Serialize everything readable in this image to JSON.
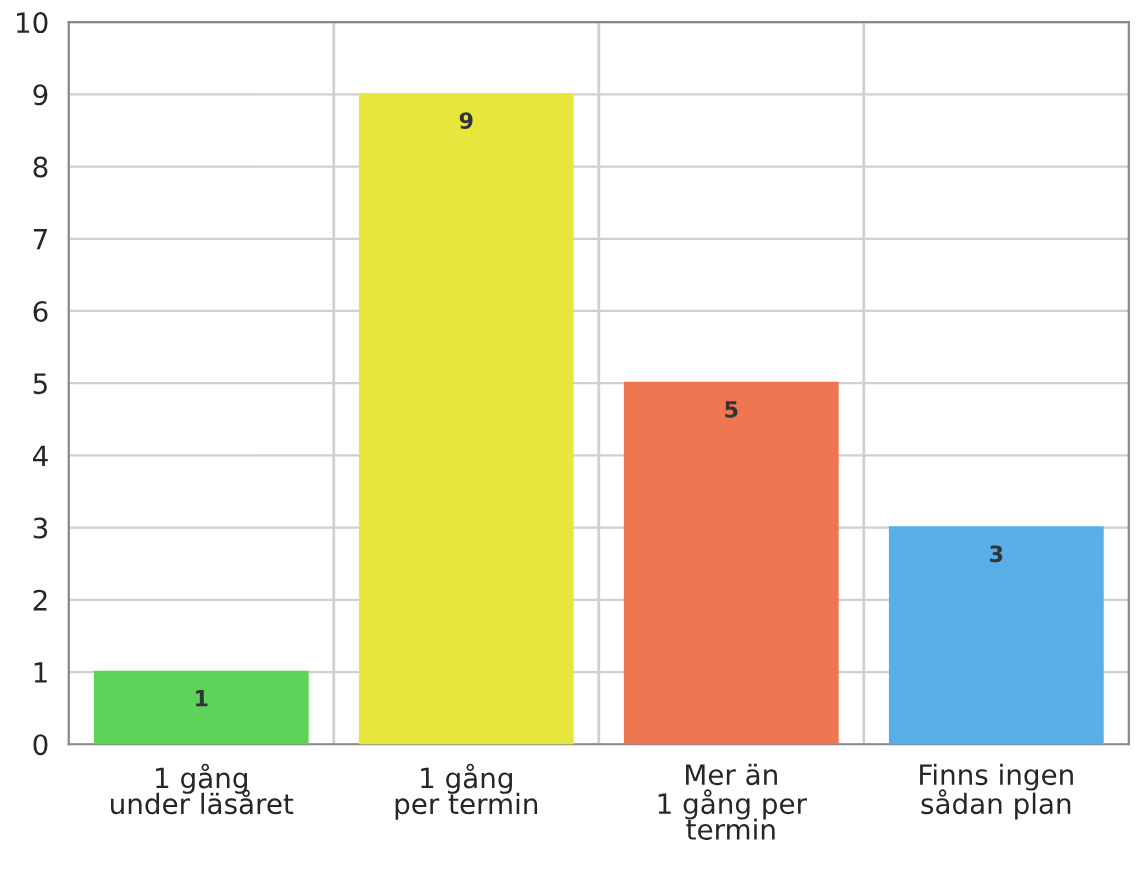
{
  "chart_data": {
    "type": "bar",
    "categories": [
      "1 gång\nunder läsåret",
      "1 gång\nper termin",
      "Mer än\n1 gång per\ntermin",
      "Finns ingen\nsådan plan"
    ],
    "values": [
      1,
      9,
      5,
      3
    ],
    "colors": [
      "#5ed35a",
      "#e6e63c",
      "#ee7650",
      "#58aee6"
    ],
    "ylim": [
      0,
      10
    ],
    "yticks": [
      0,
      1,
      2,
      3,
      4,
      5,
      6,
      7,
      8,
      9,
      10
    ],
    "grid": true,
    "data_labels": true
  }
}
